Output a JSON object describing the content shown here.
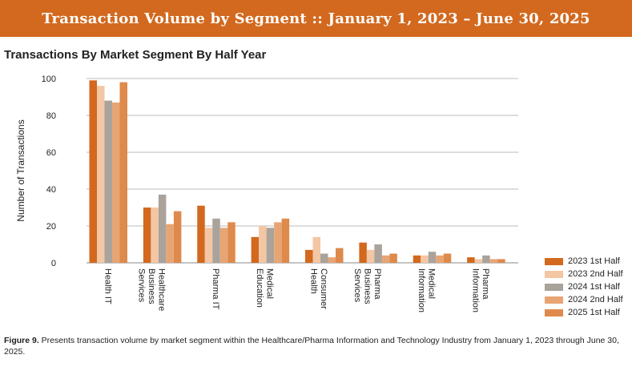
{
  "banner": {
    "title": "Transaction Volume by Segment :: January 1, 2023 – June 30, 2025"
  },
  "caption": {
    "label": "Figure 9.",
    "text": " Presents transaction volume by market segment within the Healthcare/Pharma Information and Technology Industry from January 1, 2023 through June 30, 2025."
  },
  "chart_data": {
    "type": "bar",
    "title": "Transactions By Market Segment By Half Year",
    "xlabel": "",
    "ylabel": "Number of Transactions",
    "ylim": [
      0,
      100
    ],
    "yticks": [
      0,
      20,
      40,
      60,
      80,
      100
    ],
    "grid": true,
    "legend_position": "bottom-right",
    "categories": [
      [
        "Health IT"
      ],
      [
        "Healthcare",
        "Business",
        "Services"
      ],
      [
        "Pharma IT"
      ],
      [
        "Medical",
        "Education"
      ],
      [
        "Consumer",
        "Health"
      ],
      [
        "Pharma",
        "Business",
        "Services"
      ],
      [
        "Medical",
        "Information"
      ],
      [
        "Pharma",
        "Information"
      ]
    ],
    "series": [
      {
        "name": "2023 1st Half",
        "color": "#d2691e",
        "values": [
          99,
          30,
          31,
          14,
          7,
          11,
          4,
          3
        ]
      },
      {
        "name": "2023 2nd Half",
        "color": "#f3c6a4",
        "values": [
          96,
          30,
          19,
          20,
          14,
          7,
          4,
          2
        ]
      },
      {
        "name": "2024 1st Half",
        "color": "#a9a39b",
        "values": [
          88,
          37,
          24,
          19,
          5,
          10,
          6,
          4
        ]
      },
      {
        "name": "2024 2nd Half",
        "color": "#e8a574",
        "values": [
          87,
          21,
          19,
          22,
          3,
          4,
          4,
          2
        ]
      },
      {
        "name": "2025 1st Half",
        "color": "#de8a4c",
        "values": [
          98,
          28,
          22,
          24,
          8,
          5,
          5,
          2
        ]
      }
    ]
  }
}
